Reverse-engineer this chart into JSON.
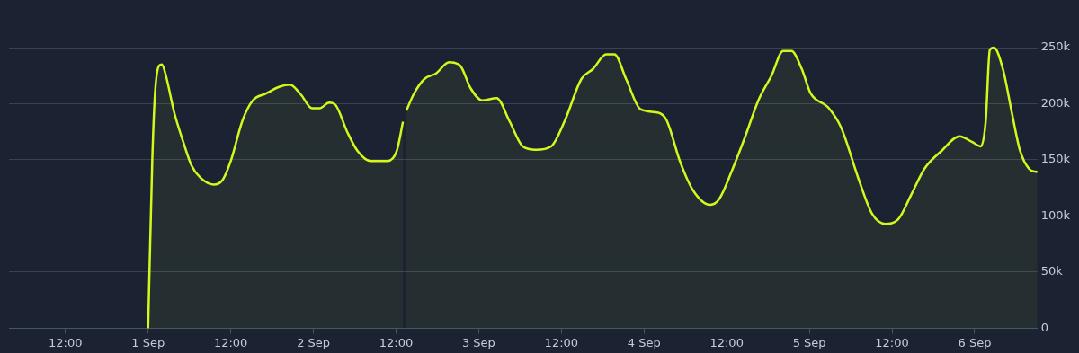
{
  "chart_data": {
    "type": "area",
    "color": "#d4f81c",
    "grid": "y",
    "marker": "none",
    "legend": false,
    "x": [
      "--09-01T00:00",
      "--09-01T00:36",
      "--09-01T01:00",
      "--09-01T01:36",
      "--09-01T02:00",
      "--09-01T02:30",
      "--09-01T03:48",
      "--09-01T05:06",
      "--09-01T06:18",
      "--09-01T07:36",
      "--09-01T09:30",
      "--09-01T10:48",
      "--09-01T12:00",
      "--09-01T13:42",
      "--09-01T15:12",
      "--09-01T17:06",
      "--09-01T19:00",
      "--09-01T20:36",
      "--09-01T22:12",
      "--09-01T23:48",
      "--09-02T00:54",
      "--09-02T02:18",
      "--09-02T03:12",
      "--09-02T04:54",
      "--09-02T06:24",
      "--09-02T08:18",
      "--09-02T10:48",
      "--09-02T12:06",
      "--09-02T13:00",
      "--09-02T13:12",
      "--09-02T13:30",
      "--09-02T14:36",
      "--09-02T16:06",
      "--09-02T17:48",
      "--09-02T19:42",
      "--09-02T21:18",
      "--09-02T22:48",
      "--09-03T00:30",
      "--09-03T02:36",
      "--09-03T04:30",
      "--09-03T06:24",
      "--09-03T08:18",
      "--09-03T10:30",
      "--09-03T12:30",
      "--09-03T14:54",
      "--09-03T16:36",
      "--09-03T18:30",
      "--09-03T19:42",
      "--09-03T21:24",
      "--09-03T23:30",
      "--09-04T02:06",
      "--09-04T03:18",
      "--09-04T05:12",
      "--09-04T07:06",
      "--09-04T09:36",
      "--09-04T10:54",
      "--09-04T12:48",
      "--09-04T14:42",
      "--09-04T16:36",
      "--09-04T18:30",
      "--09-04T20:12",
      "--09-04T21:24",
      "--09-04T22:54",
      "--09-05T00:12",
      "--09-05T02:42",
      "--09-05T04:36",
      "--09-05T07:12",
      "--09-05T09:06",
      "--09-05T11:00",
      "--09-05T12:54",
      "--09-05T14:48",
      "--09-05T16:42",
      "--09-05T19:12",
      "--09-05T21:48",
      "--09-05T23:36",
      "--09-06T00:54",
      "--09-06T01:36",
      "--09-06T02:12",
      "--09-06T02:48",
      "--09-06T04:06",
      "--09-06T05:24",
      "--09-06T06:36",
      "--09-06T07:54",
      "--09-06T09:06"
    ],
    "values": [
      0,
      149000,
      209000,
      234000,
      235000,
      227000,
      192000,
      166000,
      145000,
      134000,
      128000,
      132000,
      149000,
      185000,
      203000,
      209000,
      215000,
      217000,
      208000,
      196000,
      196000,
      201000,
      199000,
      175000,
      158000,
      149000,
      149000,
      158000,
      184000,
      null,
      194000,
      209000,
      222000,
      227000,
      237000,
      234000,
      214000,
      203000,
      205000,
      184000,
      162000,
      159000,
      162000,
      185000,
      222000,
      231000,
      244000,
      244000,
      222000,
      195000,
      192000,
      185000,
      149000,
      123000,
      110000,
      115000,
      141000,
      171000,
      203000,
      225000,
      247000,
      247000,
      231000,
      209000,
      197000,
      179000,
      132000,
      102000,
      93000,
      97000,
      119000,
      142000,
      158000,
      171000,
      166000,
      162000,
      184000,
      248000,
      250000,
      231000,
      192000,
      158000,
      142000,
      139000
    ],
    "xlim": [
      "--08-31T03:48",
      "--09-06T09:06"
    ],
    "xticks": [
      {
        "value": "--08-31T12:00",
        "label": "12:00"
      },
      {
        "value": "--09-01T00:00",
        "label": "1 Sep"
      },
      {
        "value": "--09-01T12:00",
        "label": "12:00"
      },
      {
        "value": "--09-02T00:00",
        "label": "2 Sep"
      },
      {
        "value": "--09-02T12:00",
        "label": "12:00"
      },
      {
        "value": "--09-03T00:00",
        "label": "3 Sep"
      },
      {
        "value": "--09-03T12:00",
        "label": "12:00"
      },
      {
        "value": "--09-04T00:00",
        "label": "4 Sep"
      },
      {
        "value": "--09-04T12:00",
        "label": "12:00"
      },
      {
        "value": "--09-05T00:00",
        "label": "5 Sep"
      },
      {
        "value": "--09-05T12:00",
        "label": "12:00"
      },
      {
        "value": "--09-06T00:00",
        "label": "6 Sep"
      }
    ],
    "ylim": [
      0,
      250000
    ],
    "yticks": [
      {
        "value": 0,
        "label": "0"
      },
      {
        "value": 50000,
        "label": "50k"
      },
      {
        "value": 100000,
        "label": "100k"
      },
      {
        "value": 150000,
        "label": "150k"
      },
      {
        "value": 200000,
        "label": "200k"
      },
      {
        "value": 250000,
        "label": "250k"
      }
    ]
  }
}
